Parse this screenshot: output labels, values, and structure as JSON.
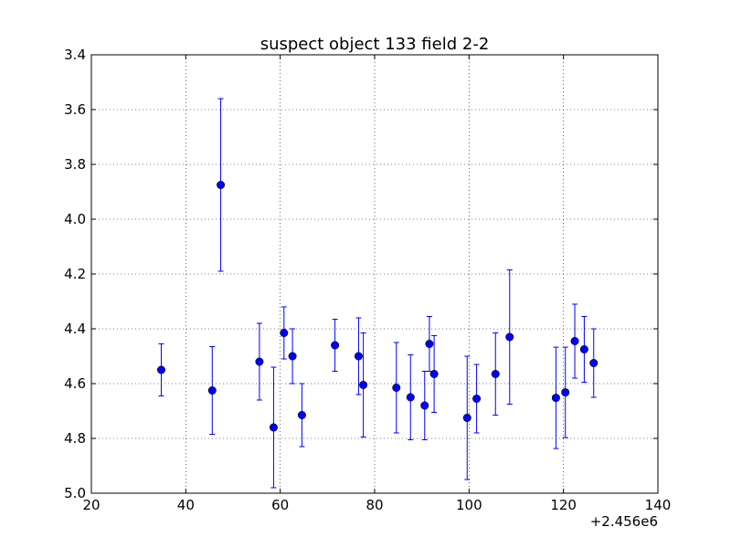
{
  "chart_data": {
    "type": "scatter",
    "title": "suspect object 133 field 2-2",
    "xlabel": "",
    "ylabel": "",
    "x_offset_label": "+2.456e6",
    "xlim": [
      20,
      140
    ],
    "ylim": [
      5.0,
      3.4
    ],
    "y_inverted": true,
    "grid": true,
    "x_ticks": [
      "20",
      "40",
      "60",
      "80",
      "100",
      "120",
      "140"
    ],
    "y_ticks": [
      "3.4",
      "3.6",
      "3.8",
      "4.0",
      "4.2",
      "4.4",
      "4.6",
      "4.8",
      "5.0"
    ],
    "marker_color": "#0000ff",
    "errorbar_color": "#0000ff",
    "points": [
      {
        "x": 34.8,
        "y": 4.55,
        "err": 0.095
      },
      {
        "x": 45.6,
        "y": 4.625,
        "err": 0.16
      },
      {
        "x": 47.4,
        "y": 3.875,
        "err": 0.315
      },
      {
        "x": 55.6,
        "y": 4.52,
        "err": 0.14
      },
      {
        "x": 58.6,
        "y": 4.76,
        "err": 0.22
      },
      {
        "x": 60.8,
        "y": 4.415,
        "err": 0.095
      },
      {
        "x": 62.6,
        "y": 4.5,
        "err": 0.1
      },
      {
        "x": 64.6,
        "y": 4.715,
        "err": 0.115
      },
      {
        "x": 71.6,
        "y": 4.46,
        "err": 0.095
      },
      {
        "x": 76.6,
        "y": 4.5,
        "err": 0.14
      },
      {
        "x": 77.6,
        "y": 4.605,
        "err": 0.19
      },
      {
        "x": 84.6,
        "y": 4.615,
        "err": 0.165
      },
      {
        "x": 87.6,
        "y": 4.65,
        "err": 0.155
      },
      {
        "x": 90.6,
        "y": 4.68,
        "err": 0.125
      },
      {
        "x": 91.6,
        "y": 4.455,
        "err": 0.1
      },
      {
        "x": 92.6,
        "y": 4.565,
        "err": 0.14
      },
      {
        "x": 99.6,
        "y": 4.725,
        "err": 0.225
      },
      {
        "x": 101.6,
        "y": 4.655,
        "err": 0.125
      },
      {
        "x": 105.6,
        "y": 4.565,
        "err": 0.15
      },
      {
        "x": 108.6,
        "y": 4.43,
        "err": 0.245
      },
      {
        "x": 118.4,
        "y": 4.652,
        "err": 0.185
      },
      {
        "x": 120.4,
        "y": 4.632,
        "err": 0.165
      },
      {
        "x": 122.4,
        "y": 4.445,
        "err": 0.135
      },
      {
        "x": 124.4,
        "y": 4.475,
        "err": 0.12
      },
      {
        "x": 126.4,
        "y": 4.525,
        "err": 0.125
      }
    ]
  }
}
